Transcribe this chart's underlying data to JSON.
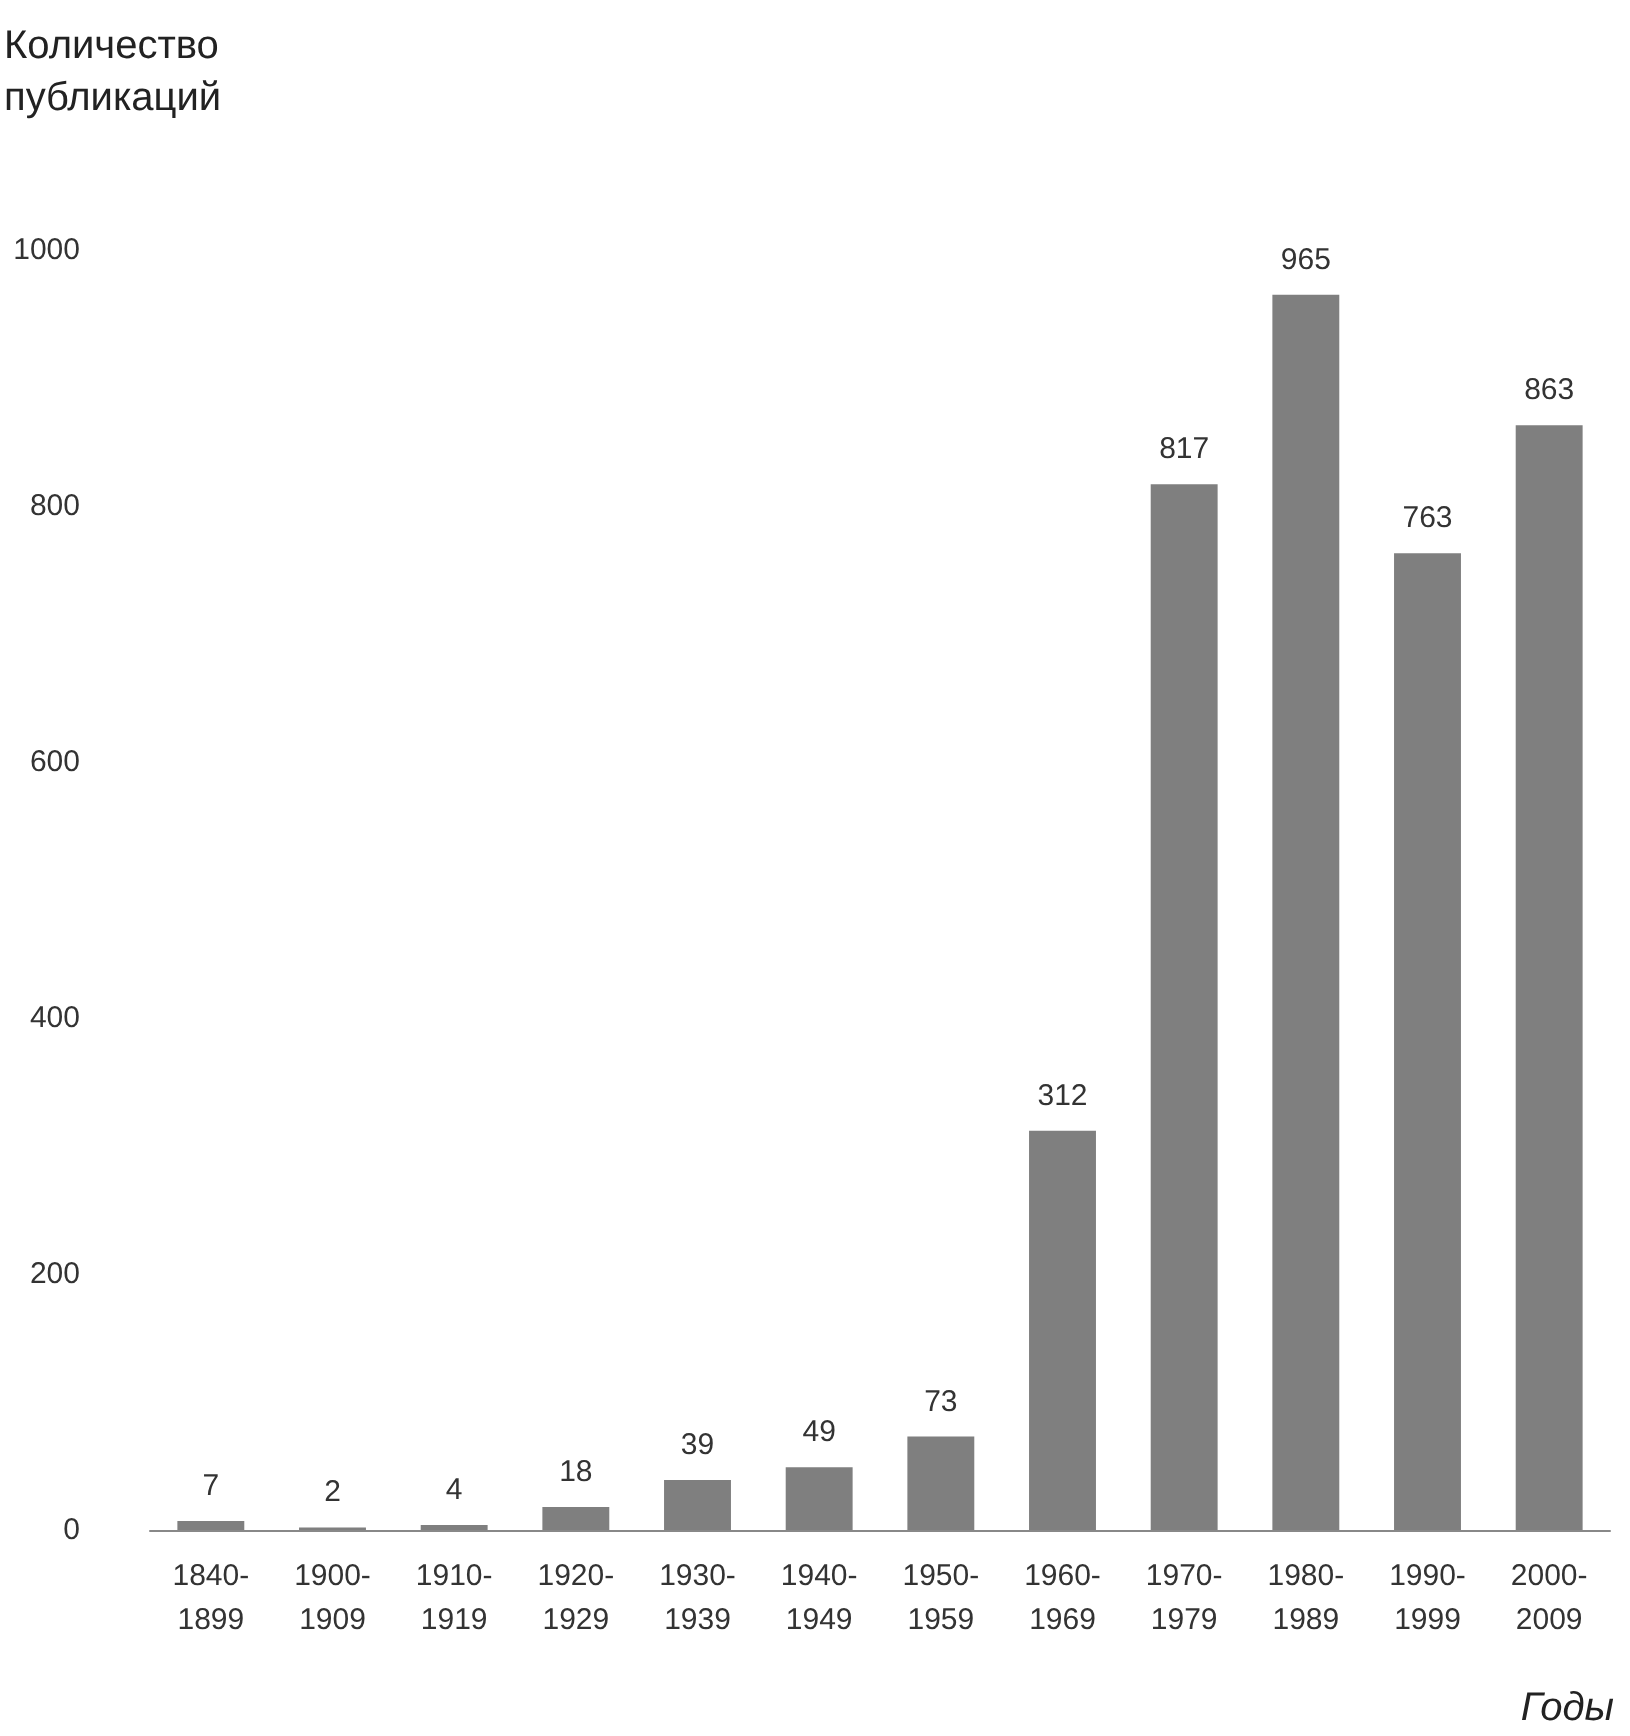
{
  "chart_data": {
    "type": "bar",
    "categories": [
      "1840-1899",
      "1900-1909",
      "1910-1919",
      "1920-1929",
      "1930-1939",
      "1940-1949",
      "1950-1959",
      "1960-1969",
      "1970-1979",
      "1980-1989",
      "1990-1999",
      "2000-2009"
    ],
    "values": [
      7,
      2,
      4,
      18,
      39,
      49,
      73,
      312,
      817,
      965,
      763,
      863
    ],
    "color": "#7f7f7f",
    "ylabel": "Количество публикаций",
    "xlabel": "Годы",
    "ylim": [
      0,
      1000
    ],
    "yticks": [
      0,
      200,
      400,
      600,
      800,
      1000
    ],
    "grid": false,
    "data_labels": true
  }
}
